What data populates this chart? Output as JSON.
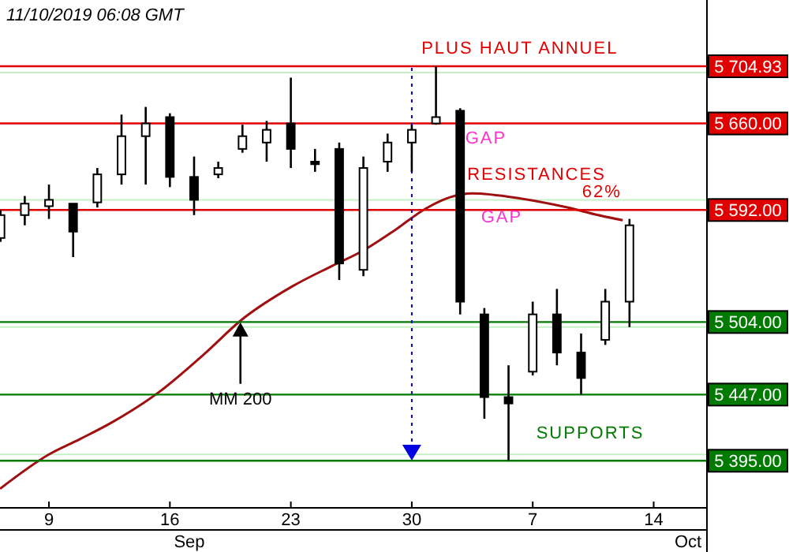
{
  "chart_data": {
    "type": "candlestick",
    "title": "11/10/2019  06:08 GMT",
    "x": [
      "2019-09-06T04:48",
      "2019-09-07T14:24",
      "2019-09-09T00:00",
      "2019-09-10T09:36",
      "2019-09-11T19:12",
      "2019-09-13T04:48",
      "2019-09-14T14:24",
      "2019-09-16T00:00",
      "2019-09-17T09:36",
      "2019-09-18T19:12",
      "2019-09-20T04:48",
      "2019-09-21T14:24",
      "2019-09-23T00:00",
      "2019-09-24T09:36",
      "2019-09-25T19:12",
      "2019-09-27T04:48",
      "2019-09-28T14:24",
      "2019-09-30T00:00",
      "2019-10-01T09:36",
      "2019-10-02T19:12",
      "2019-10-04T04:48",
      "2019-10-05T14:24",
      "2019-10-07T00:00",
      "2019-10-08T09:36",
      "2019-10-09T19:12",
      "2019-10-11T04:48",
      "2019-10-12T14:24"
    ],
    "ohlc": [
      [
        5570,
        5592,
        5567,
        5588
      ],
      [
        5588,
        5603,
        5580,
        5597
      ],
      [
        5595,
        5612,
        5585,
        5600
      ],
      [
        5597,
        5597,
        5555,
        5575
      ],
      [
        5598,
        5625,
        5594,
        5620
      ],
      [
        5620,
        5667,
        5612,
        5650
      ],
      [
        5650,
        5673,
        5612,
        5660
      ],
      [
        5665,
        5668,
        5610,
        5618
      ],
      [
        5618,
        5634,
        5588,
        5600
      ],
      [
        5620,
        5630,
        5617,
        5625
      ],
      [
        5640,
        5659,
        5637,
        5650
      ],
      [
        5645,
        5662,
        5630,
        5655
      ],
      [
        5660,
        5696,
        5625,
        5640
      ],
      [
        5630,
        5640,
        5622,
        5628
      ],
      [
        5640,
        5645,
        5537,
        5550
      ],
      [
        5545,
        5634,
        5540,
        5625
      ],
      [
        5630,
        5652,
        5622,
        5645
      ],
      [
        5645,
        5659,
        5622,
        5655
      ],
      [
        5660,
        5705,
        5659,
        5665
      ],
      [
        5670,
        5672,
        5510,
        5520
      ],
      [
        5510,
        5515,
        5428,
        5445
      ],
      [
        5445,
        5470,
        5395,
        5440
      ],
      [
        5465,
        5520,
        5462,
        5510
      ],
      [
        5510,
        5530,
        5470,
        5480
      ],
      [
        5480,
        5495,
        5447,
        5460
      ],
      [
        5490,
        5530,
        5486,
        5520
      ],
      [
        5520,
        5585,
        5500,
        5580
      ]
    ],
    "color": "#000000",
    "series": [
      {
        "type": "line",
        "color": "#a01010",
        "x": [
          "2019-09-06T04:00",
          "2019-09-09T00:00",
          "2019-09-10T19:00",
          "2019-09-12T15:00",
          "2019-09-15T09:00",
          "2019-09-18T02:00",
          "2019-09-20T02:00",
          "2019-09-23T02:00",
          "2019-09-25T09:00",
          "2019-09-27T04:00",
          "2019-09-29T00:00",
          "2019-09-30T19:00",
          "2019-10-02T05:00",
          "2019-10-03T12:00",
          "2019-10-06T07:00",
          "2019-10-09T00:00",
          "2019-10-10T19:00",
          "2019-10-12T05:00"
        ],
        "values": [
          5373,
          5400,
          5412,
          5425,
          5449,
          5480,
          5505,
          5532,
          5548,
          5560,
          5576,
          5593,
          5602,
          5605,
          5601,
          5594,
          5588,
          5584
        ]
      }
    ],
    "xlim": [
      "2019-09-06T04:00",
      "2019-10-17T02:00"
    ],
    "xticks": [
      {
        "value": "2019-09-09",
        "label": "9"
      },
      {
        "value": "2019-09-16",
        "label": "16"
      },
      {
        "value": "2019-09-23",
        "label": "23"
      },
      {
        "value": "2019-09-30",
        "label": "30"
      },
      {
        "value": "2019-10-07",
        "label": "7"
      },
      {
        "value": "2019-10-14",
        "label": "14"
      }
    ],
    "ylim": [
      5358,
      5757
    ],
    "yticks": [
      {
        "value": 5400,
        "label": null
      },
      {
        "value": 5500,
        "label": null
      },
      {
        "value": 5600,
        "label": null
      },
      {
        "value": 5700,
        "label": null
      }
    ],
    "grid": "y",
    "ref_lines": [
      {
        "axis": "y",
        "value": 5704.93,
        "label": "5 704.93",
        "color": "#e00000"
      },
      {
        "axis": "y",
        "value": 5660,
        "label": "5 660.00",
        "color": "#e00000"
      },
      {
        "axis": "y",
        "value": 5592,
        "label": "5 592.00",
        "color": "#e00000"
      },
      {
        "axis": "y",
        "value": 5504,
        "label": "5 504.00",
        "color": "#007a00"
      },
      {
        "axis": "y",
        "value": 5447,
        "label": "5 447.00",
        "color": "#007a00"
      },
      {
        "axis": "y",
        "value": 5395,
        "label": "5 395.00",
        "color": "#007a00"
      },
      {
        "axis": "x",
        "value": "2019-09-30",
        "color": "#0000e0",
        "line_style": "dotted"
      }
    ],
    "annotations": [
      {
        "text": "PLUS HAUT ANNUEL",
        "x": "2019-10-06T06:00",
        "y": 5704.93
      },
      "GAP",
      "RESISTANCES",
      "GAP",
      "SUPPORTS",
      "Sep",
      "Oct",
      {
        "text": "62%",
        "x": "2019-10-11T00:00",
        "y": 5592
      },
      {
        "text": "MM 200",
        "x": "2019-09-20T02:00",
        "y": 5505
      }
    ]
  }
}
